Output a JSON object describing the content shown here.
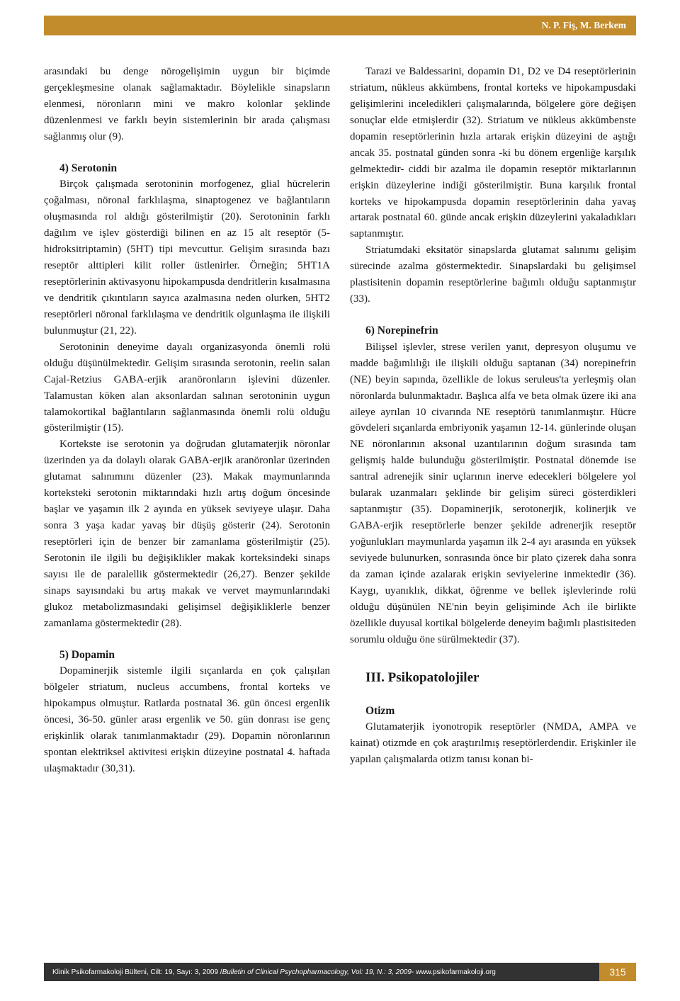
{
  "header": {
    "bg_color": "#c28b2c",
    "text_color": "#ffffff",
    "authors": "N. P. Fiş, M. Berkem"
  },
  "left_column": {
    "p1": "arasındaki bu denge nörogelişimin uygun bir biçimde gerçekleşmesine olanak sağlamaktadır. Böylelikle sinapsların elenmesi, nöronların mini ve makro kolonlar şeklinde düzenlenmesi ve farklı beyin sistemlerinin bir arada çalışması sağlanmış olur (9).",
    "h_serotonin": "4) Serotonin",
    "p2": "Birçok çalışmada serotoninin morfogenez, glial hücrelerin çoğalması, nöronal farklılaşma, sinaptogenez ve bağlantıların oluşmasında rol aldığı gösterilmiştir (20). Serotoninin farklı dağılım ve işlev gösterdiği bilinen en az 15 alt reseptör (5-hidroksitriptamin) (5HT) tipi mevcuttur. Gelişim sırasında bazı reseptör alttipleri kilit roller üstlenirler. Örneğin; 5HT1A reseptörlerinin aktivasyonu hipokampusda dendritlerin kısalmasına ve dendritik çıkıntıların sayıca azalmasına neden olurken, 5HT2 reseptörleri nöronal farklılaşma ve dendritik olgunlaşma ile ilişkili bulunmuştur (21, 22).",
    "p3": "Serotoninin deneyime dayalı organizasyonda önemli rolü olduğu düşünülmektedir. Gelişim sırasında serotonin, reelin salan Cajal-Retzius GABA-erjik aranöronların işlevini düzenler. Talamustan köken alan aksonlardan salınan serotoninin uygun talamokortikal bağlantıların sağlanmasında önemli rolü olduğu gösterilmiştir (15).",
    "p4": "Kortekste ise serotonin ya doğrudan glutamaterjik nöronlar üzerinden ya da dolaylı olarak GABA-erjik aranöronlar üzerinden glutamat salınımını düzenler (23). Makak maymunlarında korteksteki serotonin miktarındaki hızlı artış doğum öncesinde başlar ve yaşamın ilk 2 ayında en yüksek seviyeye ulaşır. Daha sonra 3 yaşa kadar yavaş bir düşüş gösterir (24). Serotonin reseptörleri için de benzer bir zamanlama gösterilmiştir (25). Serotonin ile ilgili bu değişiklikler makak korteksindeki sinaps sayısı ile de paralellik göstermektedir (26,27). Benzer şekilde sinaps sayısındaki bu artış makak ve vervet maymunlarındaki glukoz metabolizmasındaki gelişimsel değişikliklerle benzer zamanlama göstermektedir (28).",
    "h_dopamin": "5) Dopamin",
    "p5": "Dopaminerjik sistemle ilgili sıçanlarda en çok çalışılan bölgeler striatum, nucleus accumbens, frontal korteks ve hipokampus olmuştur. Ratlarda postnatal 36. gün öncesi ergenlik öncesi, 36-50. günler arası ergenlik ve 50. gün donrası ise genç erişkinlik olarak tanımlanmaktadır (29). Dopamin nöronlarının spontan elektriksel aktivitesi erişkin düzeyine postnatal 4. haftada ulaşmaktadır (30,31)."
  },
  "right_column": {
    "p1": "Tarazi ve Baldessarini, dopamin D1, D2 ve D4 reseptörlerinin striatum, nükleus akkümbens, frontal korteks ve hipokampusdaki gelişimlerini inceledikleri çalışmalarında, bölgelere göre değişen sonuçlar elde etmişlerdir (32). Striatum ve nükleus akkümbenste dopamin reseptörlerinin hızla artarak erişkin düzeyini de aştığı ancak 35. postnatal günden sonra -ki bu dönem ergenliğe karşılık gelmektedir- ciddi bir azalma ile dopamin reseptör miktarlarının erişkin düzeylerine indiği gösterilmiştir. Buna karşılık frontal korteks ve hipokampusda dopamin reseptörlerinin daha yavaş artarak postnatal 60. günde ancak erişkin düzeylerini yakaladıkları saptanmıştır.",
    "p2": "Striatumdaki eksitatör sinapslarda glutamat salınımı gelişim sürecinde azalma göstermektedir. Sinapslardaki bu gelişimsel plastisitenin dopamin reseptörlerine bağımlı olduğu saptanmıştır (33).",
    "h_norepinefrin": "6) Norepinefrin",
    "p3": "Bilişsel işlevler, strese verilen yanıt, depresyon oluşumu ve madde bağımlılığı ile ilişkili olduğu saptanan (34) norepinefrin (NE) beyin sapında, özellikle de lokus seruleus'ta yerleşmiş olan nöronlarda bulunmaktadır. Başlıca alfa ve beta olmak üzere iki ana aileye ayrılan 10 civarında NE reseptörü tanımlanmıştır. Hücre gövdeleri sıçanlarda embriyonik yaşamın 12-14. günlerinde oluşan NE nöronlarının aksonal uzantılarının doğum sırasında tam gelişmiş halde bulunduğu gösterilmiştir. Postnatal dönemde ise santral adrenejik sinir uçlarının inerve edecekleri bölgelere yol bularak uzanmaları şeklinde bir gelişim süreci gösterdikleri saptanmıştır (35). Dopaminerjik, serotonerjik, kolinerjik ve GABA-erjik reseptörlerle benzer şekilde adrenerjik reseptör yoğunlukları maymunlarda yaşamın ilk 2-4 ayı arasında en yüksek seviyede bulunurken, sonrasında önce bir plato çizerek daha sonra da zaman içinde azalarak erişkin seviyelerine inmektedir (36). Kaygı, uyanıklık, dikkat, öğrenme ve bellek işlevlerinde rolü olduğu düşünülen NE'nin beyin gelişiminde Ach ile birlikte özellikle duyusal kortikal bölgelerde deneyim bağımlı plastisiteden sorumlu olduğu öne sürülmektedir (37).",
    "h_section3": "III. Psikopatolojiler",
    "h_otizm": "Otizm",
    "p4": "Glutamaterjik iyonotropik reseptörler (NMDA, AMPA ve kainat) otizmde en çok araştırılmış reseptörlerdendir. Erişkinler ile yapılan çalışmalarda otizm tanısı konan bi-"
  },
  "footer": {
    "bar_color": "#323232",
    "accent_color": "#c28b2c",
    "text_tr": "Klinik Psikofarmakoloji Bülteni, Cilt: 19, Sayı: 3, 2009 / ",
    "text_en": "Bulletin of Clinical Psychopharmacology, Vol: 19, N.: 3, 2009",
    "url": " - www.psikofarmakoloji.org",
    "page": "315"
  }
}
